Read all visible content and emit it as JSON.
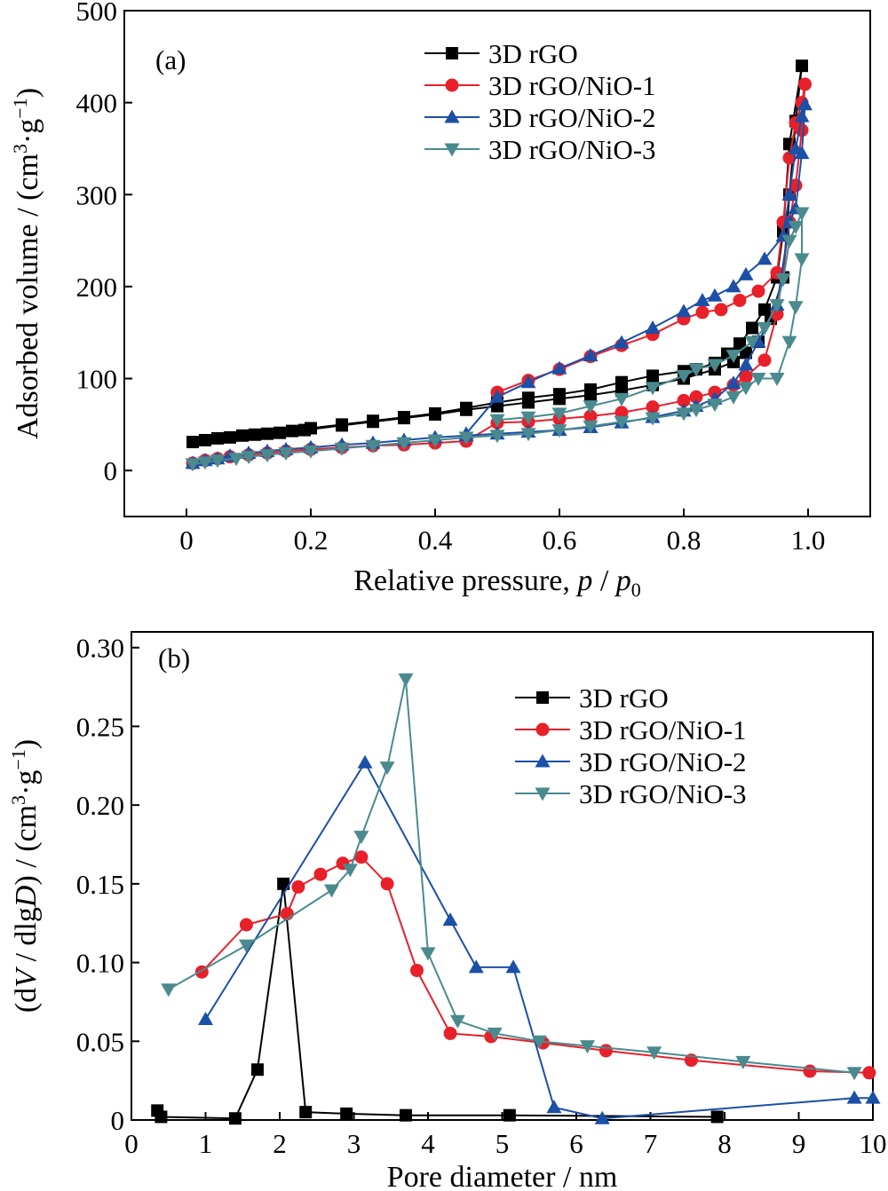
{
  "chart_data": [
    {
      "panel_label": "(a)",
      "type": "line",
      "xlabel": "Relative pressure, p / p0",
      "ylabel": "Adsorbed volume / (cm3·g−1)",
      "xlim": [
        -0.1,
        1.1
      ],
      "ylim": [
        -50,
        500
      ],
      "xticks": [
        "0",
        "0.2",
        "0.4",
        "0.6",
        "0.8",
        "1.0"
      ],
      "xtick_values": [
        0,
        0.2,
        0.4,
        0.6,
        0.8,
        1.0
      ],
      "yticks": [
        "0",
        "100",
        "200",
        "300",
        "400",
        "500"
      ],
      "ytick_values": [
        0,
        100,
        200,
        300,
        400,
        500
      ],
      "grid": false,
      "legend_position": "top-right",
      "series": [
        {
          "name": "3D rGO",
          "color": "#000000",
          "marker": "square",
          "x": [
            0.01,
            0.03,
            0.05,
            0.07,
            0.09,
            0.11,
            0.13,
            0.15,
            0.17,
            0.19,
            0.25,
            0.3,
            0.35,
            0.4,
            0.45,
            0.5,
            0.55,
            0.6,
            0.65,
            0.7,
            0.75,
            0.8,
            0.85,
            0.88,
            0.9,
            0.92,
            0.94,
            0.96,
            0.97,
            0.98,
            0.99,
            0.97,
            0.96,
            0.95,
            0.93,
            0.91,
            0.89,
            0.87,
            0.85,
            0.82,
            0.8,
            0.75,
            0.7,
            0.65,
            0.6,
            0.55,
            0.5,
            0.45,
            0.4,
            0.35,
            0.3,
            0.25,
            0.2
          ],
          "y": [
            31,
            33,
            35,
            36,
            38,
            39,
            40,
            41,
            43,
            44,
            49,
            53,
            57,
            61,
            66,
            70,
            74,
            78,
            82,
            87,
            93,
            100,
            110,
            118,
            128,
            140,
            165,
            210,
            300,
            380,
            440,
            355,
            260,
            210,
            175,
            155,
            138,
            127,
            117,
            110,
            108,
            103,
            96,
            88,
            83,
            79,
            74,
            68,
            62,
            58,
            54,
            50,
            46
          ]
        },
        {
          "name": "3D rGO/NiO-1",
          "color": "#e8202a",
          "marker": "circle",
          "x": [
            0.01,
            0.03,
            0.05,
            0.07,
            0.1,
            0.13,
            0.16,
            0.2,
            0.25,
            0.3,
            0.35,
            0.4,
            0.45,
            0.5,
            0.55,
            0.6,
            0.65,
            0.7,
            0.75,
            0.8,
            0.82,
            0.85,
            0.88,
            0.9,
            0.93,
            0.95,
            0.97,
            0.98,
            0.99,
            0.995,
            0.99,
            0.98,
            0.97,
            0.96,
            0.95,
            0.92,
            0.89,
            0.86,
            0.83,
            0.8,
            0.75,
            0.7,
            0.65,
            0.6,
            0.55,
            0.5
          ],
          "y": [
            8,
            11,
            13,
            15,
            17,
            19,
            21,
            23,
            25,
            27,
            28,
            30,
            32,
            52,
            53,
            56,
            59,
            63,
            69,
            76,
            80,
            85,
            93,
            102,
            120,
            170,
            270,
            310,
            370,
            420,
            400,
            378,
            340,
            270,
            215,
            195,
            185,
            175,
            172,
            165,
            148,
            136,
            124,
            110,
            98,
            85
          ]
        },
        {
          "name": "3D rGO/NiO-2",
          "color": "#1c4fa6",
          "marker": "triangle-up",
          "x": [
            0.01,
            0.03,
            0.05,
            0.07,
            0.1,
            0.13,
            0.16,
            0.2,
            0.25,
            0.3,
            0.35,
            0.4,
            0.45,
            0.5,
            0.55,
            0.6,
            0.65,
            0.7,
            0.75,
            0.8,
            0.82,
            0.85,
            0.88,
            0.9,
            0.92,
            0.95,
            0.97,
            0.98,
            0.99,
            0.995,
            0.99,
            0.98,
            0.97,
            0.96,
            0.93,
            0.9,
            0.88,
            0.85,
            0.83,
            0.8,
            0.75,
            0.7,
            0.65,
            0.6,
            0.55,
            0.5,
            0.45
          ],
          "y": [
            8,
            11,
            13,
            16,
            19,
            21,
            23,
            25,
            28,
            30,
            33,
            36,
            38,
            40,
            42,
            44,
            47,
            52,
            58,
            65,
            70,
            78,
            95,
            115,
            140,
            180,
            270,
            285,
            345,
            398,
            385,
            350,
            300,
            255,
            230,
            213,
            200,
            190,
            185,
            173,
            155,
            139,
            125,
            111,
            96,
            80,
            40
          ]
        },
        {
          "name": "3D rGO/NiO-3",
          "color": "#4a8a8f",
          "marker": "triangle-down",
          "x": [
            0.01,
            0.03,
            0.05,
            0.08,
            0.1,
            0.13,
            0.16,
            0.2,
            0.25,
            0.3,
            0.35,
            0.4,
            0.45,
            0.5,
            0.55,
            0.6,
            0.65,
            0.7,
            0.75,
            0.8,
            0.82,
            0.85,
            0.88,
            0.9,
            0.92,
            0.95,
            0.97,
            0.98,
            0.99,
            0.99,
            0.98,
            0.97,
            0.96,
            0.95,
            0.93,
            0.91,
            0.88,
            0.85,
            0.82,
            0.8,
            0.75,
            0.7,
            0.65,
            0.6,
            0.55,
            0.5
          ],
          "y": [
            7,
            9,
            11,
            13,
            15,
            17,
            19,
            21,
            24,
            27,
            30,
            33,
            36,
            38,
            40,
            44,
            48,
            53,
            57,
            62,
            66,
            72,
            80,
            90,
            100,
            100,
            140,
            178,
            230,
            280,
            265,
            250,
            208,
            180,
            155,
            140,
            125,
            115,
            110,
            103,
            90,
            78,
            70,
            62,
            58,
            55
          ]
        }
      ]
    },
    {
      "panel_label": "(b)",
      "type": "line",
      "xlabel": "Pore diameter / nm",
      "ylabel": "(dV / dlgD) / (cm3·g−1)",
      "xlim": [
        0,
        10
      ],
      "ylim": [
        0,
        0.31
      ],
      "xticks": [
        "0",
        "1",
        "2",
        "3",
        "4",
        "5",
        "6",
        "7",
        "8",
        "9",
        "10"
      ],
      "xtick_values": [
        0,
        1,
        2,
        3,
        4,
        5,
        6,
        7,
        8,
        9,
        10
      ],
      "yticks": [
        "0",
        "0.05",
        "0.10",
        "0.15",
        "0.20",
        "0.25",
        "0.30"
      ],
      "ytick_values": [
        0,
        0.05,
        0.1,
        0.15,
        0.2,
        0.25,
        0.3
      ],
      "grid": false,
      "legend_position": "top-right",
      "series": [
        {
          "name": "3D rGO",
          "color": "#000000",
          "marker": "square",
          "x": [
            0.35,
            0.4,
            1.4,
            1.7,
            2.05,
            2.35,
            2.9,
            3.7,
            5.1,
            7.9
          ],
          "y": [
            0.006,
            0.002,
            0.001,
            0.032,
            0.15,
            0.005,
            0.004,
            0.003,
            0.003,
            0.002
          ]
        },
        {
          "name": "3D rGO/NiO-1",
          "color": "#e8202a",
          "marker": "circle",
          "x": [
            0.95,
            1.55,
            2.1,
            2.25,
            2.55,
            2.85,
            3.1,
            3.45,
            3.85,
            4.3,
            4.85,
            5.55,
            6.4,
            7.55,
            9.15,
            9.95
          ],
          "y": [
            0.094,
            0.124,
            0.131,
            0.148,
            0.156,
            0.163,
            0.167,
            0.15,
            0.095,
            0.055,
            0.053,
            0.049,
            0.044,
            0.038,
            0.031,
            0.03
          ]
        },
        {
          "name": "3D rGO/NiO-2",
          "color": "#1c4fa6",
          "marker": "triangle-up",
          "x": [
            1.0,
            3.15,
            4.3,
            4.65,
            5.15,
            5.7,
            6.35,
            9.75,
            10.0
          ],
          "y": [
            0.064,
            0.227,
            0.127,
            0.097,
            0.097,
            0.008,
            0.001,
            0.014,
            0.014
          ]
        },
        {
          "name": "3D rGO/NiO-3",
          "color": "#4a8a8f",
          "marker": "triangle-down",
          "x": [
            0.5,
            1.55,
            2.7,
            2.95,
            3.1,
            3.45,
            3.7,
            4.0,
            4.4,
            4.9,
            5.5,
            6.15,
            7.05,
            8.25,
            9.75
          ],
          "y": [
            0.083,
            0.111,
            0.146,
            0.159,
            0.18,
            0.224,
            0.28,
            0.106,
            0.063,
            0.055,
            0.05,
            0.047,
            0.043,
            0.037,
            0.03
          ]
        }
      ]
    }
  ]
}
